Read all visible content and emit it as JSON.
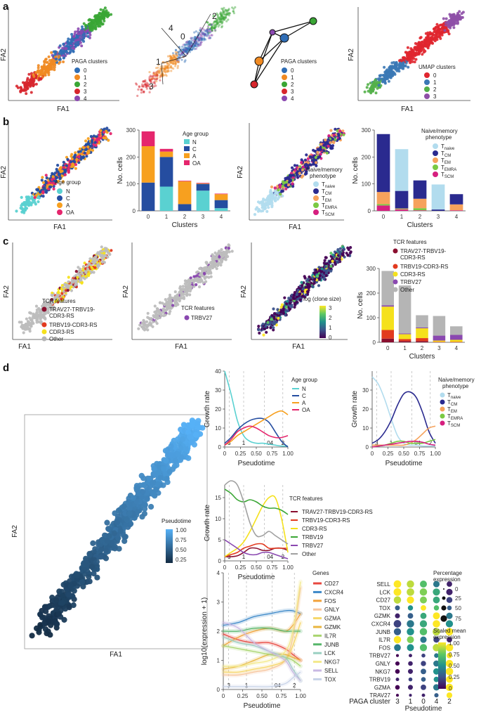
{
  "panel_labels": {
    "a": "a",
    "b": "b",
    "c": "c",
    "d": "d"
  },
  "axis_labels": {
    "fa1": "FA1",
    "fa2": "FA2",
    "clusters": "Clusters",
    "no_cells": "No. cells",
    "growth_rate": "Growth rate",
    "pseudotime": "Pseudotime",
    "log_expr": "log10(expression + 1)",
    "paga_cluster": "PAGA cluster"
  },
  "legends": {
    "paga_clusters": {
      "title": "PAGA clusters",
      "items": [
        "0",
        "1",
        "2",
        "3",
        "4"
      ]
    },
    "umap_clusters": {
      "title": "UMAP clusters",
      "items": [
        "0",
        "1",
        "2",
        "3"
      ]
    },
    "age_group": {
      "title": "Age group",
      "items": [
        "N",
        "C",
        "A",
        "OA"
      ]
    },
    "phenotype": {
      "title_line1": "Naive/memory",
      "title_line2": "phenotype",
      "items": [
        {
          "main": "T",
          "sub": "naive"
        },
        {
          "main": "T",
          "sub": "CM"
        },
        {
          "main": "T",
          "sub": "EM"
        },
        {
          "main": "T",
          "sub": "EMRA"
        },
        {
          "main": "T",
          "sub": "SCM"
        }
      ]
    },
    "tcr_features_c1": {
      "title": "TCR features",
      "items": [
        "TRAV27-TRBV19-",
        "CDR3-RS",
        "TRBV19-CDR3-RS",
        "CDR3-RS",
        "Other"
      ]
    },
    "tcr_features_c2": {
      "title": "TCR features",
      "items": [
        "TRBV27"
      ]
    },
    "clone_size": {
      "title": "log (clone size)",
      "ticks": [
        "3",
        "2",
        "1",
        "0"
      ]
    },
    "tcr_features_c4": {
      "title": "TCR features",
      "items": [
        "TRAV27-TRBV19-",
        "CDR3-RS",
        "TRBV19-CDR3-RS",
        "CDR3-RS",
        "TRBV27",
        "Other"
      ]
    },
    "pseudotime": {
      "title": "Pseudotime",
      "ticks": [
        "1.00",
        "0.75",
        "0.50",
        "0.25"
      ]
    },
    "tcr_features_d": {
      "title": "TCR features",
      "items": [
        "TRAV27-TRBV19-CDR3-RS",
        "TRBV19-CDR3-RS",
        "CDR3-RS",
        "TRBV19",
        "TRBV27",
        "Other"
      ]
    },
    "genes": {
      "title": "Genes",
      "items": [
        "CD27",
        "CXCR4",
        "FOS",
        "GNLY",
        "GZMA",
        "GZMK",
        "IL7R",
        "JUNB",
        "LCK",
        "NKG7",
        "SELL",
        "TOX"
      ]
    },
    "pct_expr": {
      "title_line1": "Percentage",
      "title_line2": "expression",
      "ticks": [
        "0",
        "25",
        "50",
        "75"
      ]
    },
    "scaled_mean": {
      "title_line1": "Scaled mean",
      "title_line2": "expression",
      "ticks": [
        "1.00",
        "0.75",
        "0.50",
        "0.25",
        "0"
      ]
    }
  },
  "pseudotime_markers": [
    "3",
    "1",
    "04",
    "2"
  ],
  "colors": {
    "c0": "#2f6db5",
    "c1": "#f08a22",
    "c2": "#3aa635",
    "c3": "#d7262d",
    "c4": "#8a48b0",
    "umap0": "#e0262f",
    "umap1": "#3b78b5",
    "umap2": "#53b049",
    "umap3": "#8e4fa7",
    "N": "#5ad1d1",
    "C": "#254da0",
    "A": "#f7a01f",
    "OA": "#e5266d",
    "naive": "#b2dcee",
    "CM": "#2a2a8f",
    "EM": "#f6a25c",
    "EMRA": "#7ac943",
    "SCM": "#d61f7f"
  },
  "chart_data": [
    {
      "id": "b2",
      "type": "bar",
      "title": "",
      "xlabel": "Clusters",
      "ylabel": "No. cells",
      "categories": [
        "0",
        "1",
        "2",
        "3",
        "4"
      ],
      "ylim": [
        0,
        300
      ],
      "yticks": [
        "0",
        "100",
        "200",
        "300"
      ],
      "series": [
        {
          "name": "N",
          "values": [
            0,
            90,
            0,
            75,
            10
          ]
        },
        {
          "name": "C",
          "values": [
            105,
            110,
            25,
            25,
            30
          ]
        },
        {
          "name": "A",
          "values": [
            135,
            20,
            85,
            2,
            22
          ]
        },
        {
          "name": "OA",
          "values": [
            55,
            10,
            2,
            2,
            2
          ]
        }
      ]
    },
    {
      "id": "b4",
      "type": "bar",
      "title": "",
      "xlabel": "Clusters",
      "ylabel": "No. cells",
      "categories": [
        "0",
        "1",
        "2",
        "3",
        "4"
      ],
      "ylim": [
        0,
        300
      ],
      "yticks": [
        "0",
        "100",
        "200",
        "300"
      ],
      "series": [
        {
          "name": "SCM",
          "values": [
            20,
            5,
            2,
            0,
            2
          ]
        },
        {
          "name": "EMRA",
          "values": [
            5,
            2,
            8,
            0,
            0
          ]
        },
        {
          "name": "EM",
          "values": [
            45,
            2,
            35,
            0,
            22
          ]
        },
        {
          "name": "CM",
          "values": [
            215,
            65,
            68,
            5,
            38
          ]
        },
        {
          "name": "naive",
          "values": [
            0,
            155,
            0,
            93,
            0
          ]
        }
      ]
    },
    {
      "id": "c4",
      "type": "bar",
      "title": "",
      "xlabel": "Clusters",
      "ylabel": "No. cells",
      "categories": [
        "0",
        "1",
        "2",
        "3",
        "4"
      ],
      "ylim": [
        0,
        300
      ],
      "yticks": [
        "0",
        "100",
        "200",
        "300"
      ],
      "series": [
        {
          "name": "TRAV27-TRBV19-CDR3-RS",
          "values": [
            15,
            5,
            5,
            0,
            0
          ]
        },
        {
          "name": "TRBV19-CDR3-RS",
          "values": [
            35,
            8,
            12,
            2,
            2
          ]
        },
        {
          "name": "CDR3-RS",
          "values": [
            95,
            20,
            40,
            5,
            8
          ]
        },
        {
          "name": "TRBV27",
          "values": [
            5,
            3,
            3,
            20,
            20
          ]
        },
        {
          "name": "Other",
          "values": [
            140,
            195,
            50,
            80,
            35
          ]
        }
      ]
    },
    {
      "id": "d_age",
      "type": "line",
      "xlabel": "Pseudotime",
      "ylabel": "Growth rate",
      "xlim": [
        0,
        1
      ],
      "ylim": [
        0,
        40
      ],
      "xticks": [
        "0",
        "0.25",
        "0.50",
        "0.75",
        "1.00"
      ],
      "yticks": [
        "0",
        "10",
        "20",
        "30",
        "40"
      ],
      "x": [
        0,
        0.1,
        0.2,
        0.3,
        0.4,
        0.5,
        0.6,
        0.7,
        0.8,
        0.9,
        1.0
      ],
      "series": [
        {
          "name": "N",
          "values": [
            40,
            28,
            14,
            6,
            3,
            2,
            2,
            1.5,
            1,
            0.5,
            0.5
          ]
        },
        {
          "name": "C",
          "values": [
            2,
            5,
            9,
            12,
            14,
            15,
            15,
            13,
            8,
            3,
            0
          ]
        },
        {
          "name": "A",
          "values": [
            1,
            3,
            6,
            8,
            10,
            12,
            14,
            16,
            18,
            19,
            17
          ]
        },
        {
          "name": "OA",
          "values": [
            1,
            4,
            8,
            10,
            11,
            10,
            8,
            6,
            5,
            5,
            6
          ]
        }
      ]
    },
    {
      "id": "d_pheno",
      "type": "line",
      "xlabel": "Pseudotime",
      "ylabel": "Growth rate",
      "xlim": [
        0,
        1
      ],
      "ylim": [
        0,
        40
      ],
      "xticks": [
        "0",
        "0.25",
        "0.50",
        "0.75",
        "1.00"
      ],
      "yticks": [
        "0",
        "10",
        "20",
        "30"
      ],
      "x": [
        0,
        0.1,
        0.2,
        0.3,
        0.4,
        0.5,
        0.6,
        0.7,
        0.8,
        0.9,
        1.0
      ],
      "series": [
        {
          "name": "naive",
          "values": [
            37,
            33,
            25,
            15,
            6,
            2,
            1,
            1,
            0.5,
            0.5,
            0.5
          ]
        },
        {
          "name": "CM",
          "values": [
            2,
            4,
            8,
            14,
            22,
            28,
            29,
            26,
            18,
            8,
            2
          ]
        },
        {
          "name": "EM",
          "values": [
            1,
            1,
            1,
            1,
            1,
            1,
            2,
            4,
            7,
            10,
            11
          ]
        },
        {
          "name": "EMRA",
          "values": [
            0,
            0.5,
            1,
            2,
            3,
            3,
            2,
            2,
            2,
            3,
            4
          ]
        },
        {
          "name": "SCM",
          "values": [
            0,
            0.5,
            1,
            1.5,
            2,
            2.5,
            3,
            3,
            2.5,
            1.5,
            1
          ]
        }
      ]
    },
    {
      "id": "d_tcr",
      "type": "line",
      "xlabel": "Pseudotime",
      "ylabel": "Growth rate",
      "xlim": [
        0,
        1
      ],
      "ylim": [
        0,
        18
      ],
      "xticks": [
        "0",
        "0.25",
        "0.50",
        "0.75",
        "1.00"
      ],
      "yticks": [
        "0",
        "5",
        "10",
        "15"
      ],
      "x": [
        0,
        0.1,
        0.2,
        0.3,
        0.4,
        0.5,
        0.6,
        0.7,
        0.8,
        0.9,
        1.0
      ],
      "series": [
        {
          "name": "TRAV27-TRBV19-CDR3-RS",
          "values": [
            1,
            1,
            1.2,
            2,
            3,
            3,
            2.5,
            2.5,
            3,
            3,
            2.5
          ]
        },
        {
          "name": "TRBV19-CDR3-RS",
          "values": [
            1,
            1.5,
            2,
            3,
            3.5,
            4,
            4,
            3,
            3,
            3,
            3
          ]
        },
        {
          "name": "CDR3-RS",
          "values": [
            1,
            2,
            3,
            4.5,
            7,
            10,
            13,
            15,
            15,
            10,
            2
          ]
        },
        {
          "name": "TRBV19",
          "values": [
            17,
            16,
            14.5,
            14,
            14.5,
            14,
            13,
            12.5,
            12.5,
            12,
            11
          ]
        },
        {
          "name": "TRBV27",
          "values": [
            5,
            4,
            3,
            2,
            1.5,
            1.5,
            2,
            2,
            1.5,
            1,
            0.5
          ]
        },
        {
          "name": "Other",
          "values": [
            18,
            19,
            18,
            14,
            9,
            6,
            6,
            7,
            6,
            5,
            4
          ]
        }
      ]
    },
    {
      "id": "d_genes",
      "type": "line",
      "xlabel": "Pseudotime",
      "ylabel": "log10(expression + 1)",
      "xlim": [
        0,
        1
      ],
      "ylim": [
        0,
        4
      ],
      "xticks": [
        "0",
        "0.25",
        "0.50",
        "0.75",
        "1.00"
      ],
      "yticks": [
        "0",
        "1",
        "2",
        "3",
        "4"
      ],
      "x": [
        0,
        0.2,
        0.4,
        0.6,
        0.8,
        0.9,
        1.0
      ],
      "series": [
        {
          "name": "CD27",
          "values": [
            1.9,
            1.7,
            1.6,
            1.6,
            1.4,
            1.2,
            1.0
          ]
        },
        {
          "name": "CXCR4",
          "values": [
            2.2,
            2.3,
            2.5,
            2.6,
            2.7,
            2.7,
            2.6
          ]
        },
        {
          "name": "FOS",
          "values": [
            1.5,
            1.8,
            2.0,
            2.1,
            2.0,
            2.2,
            2.6
          ]
        },
        {
          "name": "GNLY",
          "values": [
            0.5,
            0.5,
            0.6,
            0.7,
            1.0,
            1.8,
            3.5
          ]
        },
        {
          "name": "GZMA",
          "values": [
            0.6,
            0.6,
            0.7,
            0.8,
            1.0,
            1.5,
            2.3
          ]
        },
        {
          "name": "GZMK",
          "values": [
            0.7,
            0.8,
            1.0,
            1.2,
            1.2,
            1.1,
            1.0
          ]
        },
        {
          "name": "IL7R",
          "values": [
            1.5,
            1.4,
            1.3,
            1.2,
            1.1,
            1.0,
            0.8
          ]
        },
        {
          "name": "JUNB",
          "values": [
            2.0,
            2.0,
            2.1,
            2.1,
            2.0,
            2.0,
            2.0
          ]
        },
        {
          "name": "LCK",
          "values": [
            1.8,
            1.6,
            1.5,
            1.3,
            1.1,
            0.7,
            0.3
          ]
        },
        {
          "name": "NKG7",
          "values": [
            0.8,
            0.8,
            0.9,
            1.0,
            1.3,
            2.0,
            3.7
          ]
        },
        {
          "name": "SELL",
          "values": [
            2.3,
            2.1,
            1.6,
            1.3,
            1.0,
            0.6,
            0.3
          ]
        },
        {
          "name": "TOX",
          "values": [
            0.1,
            0.1,
            0.1,
            0.1,
            0.2,
            0.4,
            0.6
          ]
        }
      ]
    },
    {
      "id": "d_dot",
      "type": "dotplot",
      "xlabel": "Pseudotime",
      "clusters": [
        "3",
        "1",
        "0",
        "4",
        "2"
      ],
      "genes": [
        "SELL",
        "LCK",
        "CD27",
        "TOX",
        "GZMK",
        "CXCR4",
        "JUNB",
        "IL7R",
        "FOS",
        "TRBV27",
        "GNLY",
        "NKG7",
        "TRBV19",
        "GZMA",
        "TRAV27"
      ],
      "scaled": [
        [
          1,
          0.9,
          0.7,
          0.4,
          0.1
        ],
        [
          1,
          0.9,
          0.8,
          0.6,
          0.1
        ],
        [
          0.9,
          1,
          0.8,
          0.6,
          0.2
        ],
        [
          0.3,
          0.5,
          1,
          0.7,
          0.3
        ],
        [
          0.1,
          0.3,
          0.6,
          1,
          0.4
        ],
        [
          0.2,
          0.4,
          0.6,
          1,
          0.5
        ],
        [
          0.3,
          0.5,
          0.7,
          0.9,
          1
        ],
        [
          1,
          0.8,
          0.4,
          0.2,
          0.1
        ],
        [
          0.4,
          0.5,
          0.7,
          0.9,
          1
        ],
        [
          0,
          0.1,
          0.2,
          0.4,
          1
        ],
        [
          0,
          0.1,
          0.2,
          0.4,
          1
        ],
        [
          0,
          0.1,
          0.3,
          0.5,
          1
        ],
        [
          0.1,
          0.2,
          0.3,
          0.5,
          1
        ],
        [
          0,
          0.1,
          0.2,
          0.4,
          1
        ],
        [
          0,
          0.1,
          0.1,
          0.3,
          1
        ]
      ],
      "pct": [
        [
          90,
          85,
          75,
          60,
          40
        ],
        [
          95,
          90,
          85,
          80,
          60
        ],
        [
          85,
          80,
          75,
          70,
          50
        ],
        [
          30,
          35,
          40,
          35,
          25
        ],
        [
          30,
          40,
          55,
          75,
          60
        ],
        [
          90,
          85,
          80,
          85,
          80
        ],
        [
          80,
          85,
          85,
          90,
          90
        ],
        [
          85,
          75,
          60,
          50,
          40
        ],
        [
          70,
          75,
          80,
          85,
          90
        ],
        [
          5,
          10,
          15,
          25,
          40
        ],
        [
          20,
          25,
          35,
          55,
          85
        ],
        [
          25,
          30,
          40,
          60,
          90
        ],
        [
          10,
          15,
          25,
          40,
          70
        ],
        [
          25,
          30,
          40,
          60,
          85
        ],
        [
          5,
          5,
          10,
          20,
          45
        ]
      ]
    }
  ]
}
